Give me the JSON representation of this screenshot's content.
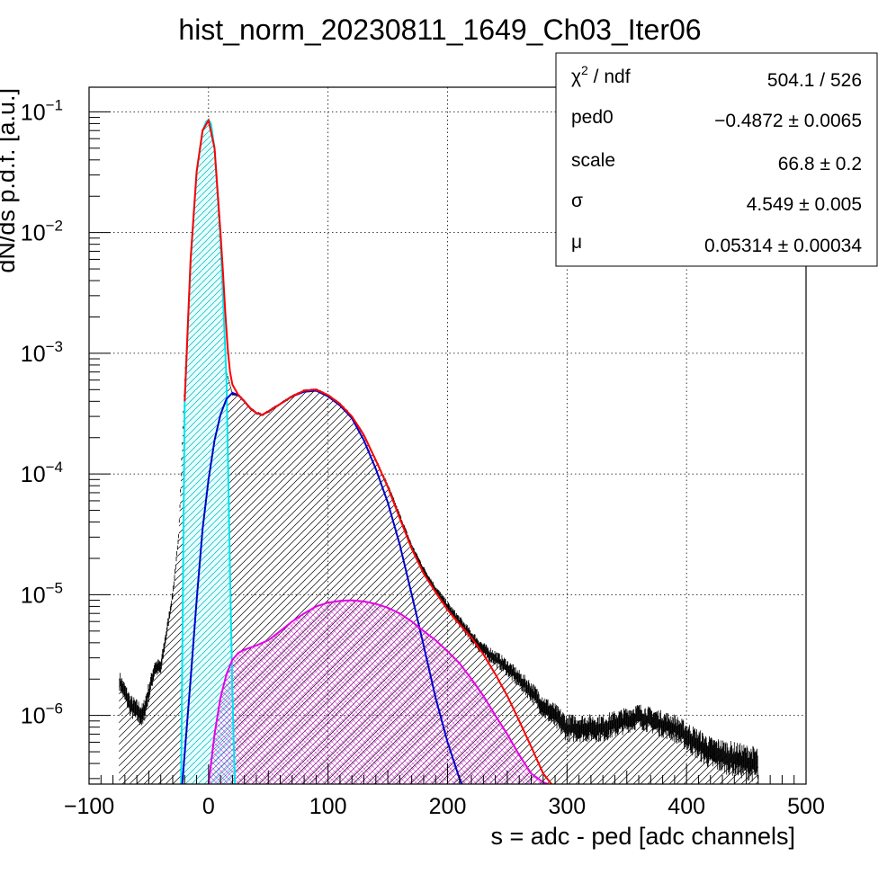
{
  "chart_data": {
    "type": "line",
    "title": "hist_norm_20230811_1649_Ch03_Iter06",
    "xlabel": "s = adc - ped [adc channels]",
    "ylabel": "dN/ds p.d.f. [a.u.]",
    "xlim": [
      -100,
      500
    ],
    "ylim": [
      2.7e-07,
      0.16
    ],
    "y_scale": "log",
    "grid": true,
    "x_ticks": [
      "−100",
      "0",
      "100",
      "200",
      "300",
      "400",
      "500"
    ],
    "y_ticks": [
      {
        "base": "10",
        "exp": "−1"
      },
      {
        "base": "10",
        "exp": "−2"
      },
      {
        "base": "10",
        "exp": "−3"
      },
      {
        "base": "10",
        "exp": "−4"
      },
      {
        "base": "10",
        "exp": "−5"
      },
      {
        "base": "10",
        "exp": "−6"
      }
    ],
    "stats_box": {
      "placement": "top-right",
      "rows": [
        {
          "label_base": "χ",
          "label_sup": "2",
          "label_rest": " / ndf",
          "value": "504.1 / 526"
        },
        {
          "label_base": "ped0",
          "label_sup": "",
          "label_rest": "",
          "value": "−0.4872 ± 0.0065"
        },
        {
          "label_base": "scale",
          "label_sup": "",
          "label_rest": "",
          "value": "66.8 ± 0.2"
        },
        {
          "label_base": "σ",
          "label_sup": "",
          "label_rest": "",
          "value": "4.549 ± 0.005"
        },
        {
          "label_base": "μ",
          "label_sup": "",
          "label_rest": "",
          "value": "0.05314 ± 0.00034"
        }
      ]
    },
    "series": [
      {
        "name": "",
        "role": "histogram",
        "color": "#000000",
        "fill_pattern": "diagonal-hatch",
        "x": [
          -75,
          -65,
          -55,
          -45,
          -40,
          -35,
          -30,
          -25,
          -20,
          -15,
          -10,
          -5,
          0,
          5,
          10,
          15,
          20,
          25,
          30,
          35,
          40,
          45,
          50,
          60,
          70,
          80,
          90,
          100,
          110,
          120,
          130,
          140,
          150,
          160,
          170,
          180,
          190,
          200,
          210,
          220,
          230,
          240,
          250,
          260,
          270,
          280,
          290,
          300,
          330,
          360,
          390,
          420,
          460
        ],
        "y": [
          2e-06,
          1.2e-06,
          1e-06,
          2.5e-06,
          2.5e-06,
          5e-06,
          1e-05,
          3e-05,
          0.0006,
          0.006,
          0.032,
          0.07,
          0.085,
          0.05,
          0.006,
          0.0007,
          0.00046,
          0.00045,
          0.0004,
          0.00035,
          0.00032,
          0.00031,
          0.00033,
          0.00038,
          0.00044,
          0.00049,
          0.0005,
          0.00045,
          0.00038,
          0.0003,
          0.00021,
          0.00013,
          8e-05,
          4.5e-05,
          2.5e-05,
          1.6e-05,
          1.1e-05,
          8e-06,
          6e-06,
          4.5e-06,
          3.5e-06,
          3e-06,
          2.5e-06,
          2e-06,
          1.6e-06,
          1.2e-06,
          1e-06,
          8e-07,
          8e-07,
          1e-06,
          8e-07,
          5e-07,
          4e-07
        ]
      },
      {
        "name": "",
        "role": "total-fit",
        "color": "#ff0000",
        "x": [
          -20,
          -15,
          -10,
          -5,
          0,
          5,
          10,
          12,
          14,
          16,
          18,
          20,
          25,
          30,
          35,
          40,
          45,
          50,
          60,
          70,
          80,
          90,
          100,
          110,
          120,
          130,
          140,
          150,
          160,
          170,
          180,
          190,
          200,
          210,
          220,
          230,
          240,
          250,
          260,
          270,
          280,
          287
        ],
        "y": [
          0.0004,
          0.006,
          0.032,
          0.07,
          0.085,
          0.05,
          0.01,
          0.0048,
          0.0022,
          0.0011,
          0.0007,
          0.00055,
          0.00045,
          0.0004,
          0.00035,
          0.00032,
          0.00031,
          0.00033,
          0.00038,
          0.00044,
          0.00049,
          0.0005,
          0.00045,
          0.00038,
          0.0003,
          0.00021,
          0.00013,
          7.8e-05,
          4.3e-05,
          2.4e-05,
          1.5e-05,
          1.05e-05,
          7.5e-06,
          5.7e-06,
          4.4e-06,
          3.2e-06,
          2.2e-06,
          1.45e-06,
          9e-07,
          5.5e-07,
          3.3e-07,
          2.7e-07
        ]
      },
      {
        "name": "",
        "role": "pedestal",
        "color": "#00e5ee",
        "x": [
          -23,
          -20,
          -15,
          -10,
          -5,
          -2,
          0,
          2,
          5,
          10,
          15,
          18,
          20,
          22
        ],
        "y": [
          2.7e-07,
          0.0004,
          0.006,
          0.032,
          0.07,
          0.083,
          0.086,
          0.08,
          0.05,
          0.009,
          0.0006,
          1.5e-05,
          1.5e-06,
          2.7e-07
        ]
      },
      {
        "name": "",
        "role": "single-photoelectron",
        "color": "#0000cc",
        "x": [
          -22,
          -15,
          -10,
          -5,
          0,
          5,
          10,
          15,
          20,
          25,
          30,
          35,
          40,
          45,
          50,
          60,
          70,
          80,
          90,
          100,
          110,
          120,
          130,
          140,
          150,
          160,
          170,
          180,
          190,
          200,
          210,
          212
        ],
        "y": [
          2.7e-07,
          2e-06,
          9e-06,
          3.5e-05,
          9e-05,
          0.00019,
          0.00031,
          0.00042,
          0.00047,
          0.00045,
          0.0004,
          0.00035,
          0.00032,
          0.00031,
          0.00033,
          0.00038,
          0.00044,
          0.00048,
          0.00049,
          0.00044,
          0.00037,
          0.00029,
          0.00019,
          0.00011,
          5.8e-05,
          2.6e-05,
          1e-05,
          3.8e-06,
          1.4e-06,
          6e-07,
          3e-07,
          2.7e-07
        ]
      },
      {
        "name": "",
        "role": "two-photoelectron",
        "color": "#e600e6",
        "fill_pattern": "cross-hatch",
        "x": [
          0,
          5,
          10,
          15,
          20,
          25,
          30,
          40,
          50,
          60,
          70,
          80,
          90,
          100,
          110,
          120,
          130,
          140,
          150,
          160,
          170,
          180,
          190,
          200,
          210,
          220,
          230,
          240,
          250,
          260,
          270,
          280,
          284
        ],
        "y": [
          2.7e-07,
          7e-07,
          1.4e-06,
          2.2e-06,
          2.9e-06,
          3.3e-06,
          3.5e-06,
          3.8e-06,
          4.2e-06,
          5e-06,
          6e-06,
          7e-06,
          8e-06,
          8.6e-06,
          8.9e-06,
          9e-06,
          8.8e-06,
          8.4e-06,
          7.8e-06,
          7e-06,
          6e-06,
          5e-06,
          4.2e-06,
          3.4e-06,
          2.7e-06,
          2e-06,
          1.45e-06,
          1e-06,
          7e-07,
          4.7e-07,
          3.3e-07,
          2.8e-07,
          2.7e-07
        ]
      }
    ]
  }
}
